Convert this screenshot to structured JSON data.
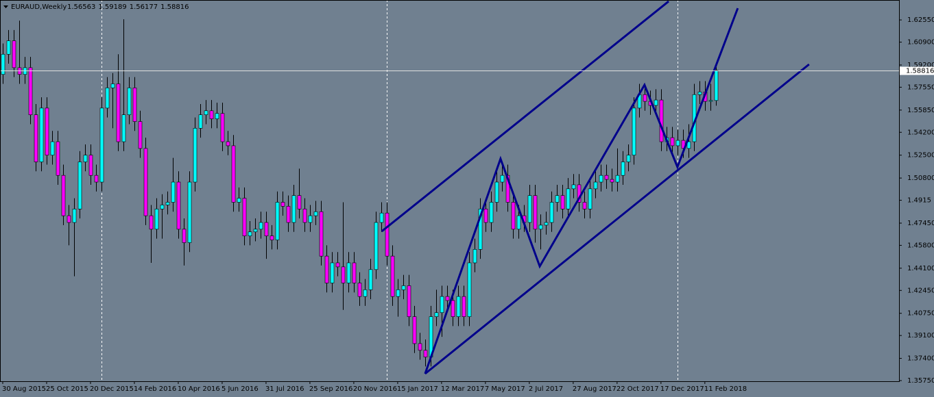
{
  "chart_data": {
    "type": "candlestick",
    "symbol": "EURAUD,Weekly",
    "bull_color": "#00ffff",
    "bear_color": "#ff00ff",
    "wick_color": "#000000",
    "background": "#708090",
    "trendline_color": "#00008b",
    "price_line_color": "#e0e0e0",
    "xlim": [
      -0.5,
      163.4
    ],
    "ylim": [
      1.357,
      1.6403
    ],
    "yticks": [
      {
        "value": 1.6255,
        "label": "1.62550"
      },
      {
        "value": 1.609,
        "label": "1.60900"
      },
      {
        "value": 1.592,
        "label": "1.59200"
      },
      {
        "value": 1.5755,
        "label": "1.57550"
      },
      {
        "value": 1.5585,
        "label": "1.55850"
      },
      {
        "value": 1.542,
        "label": "1.54200"
      },
      {
        "value": 1.525,
        "label": "1.52500"
      },
      {
        "value": 1.508,
        "label": "1.50800"
      },
      1.4915,
      {
        "value": 1.4745,
        "label": "1.47450"
      },
      {
        "value": 1.458,
        "label": "1.45800"
      },
      {
        "value": 1.441,
        "label": "1.44100"
      },
      {
        "value": 1.4245,
        "label": "1.42450"
      },
      {
        "value": 1.4075,
        "label": "1.40750"
      },
      {
        "value": 1.391,
        "label": "1.39100"
      },
      {
        "value": 1.374,
        "label": "1.37400"
      },
      {
        "value": 1.3575,
        "label": "1.35750"
      }
    ],
    "xticks": [
      {
        "value": 0,
        "label": "30 Aug 2015"
      },
      {
        "value": 8,
        "label": "25 Oct 2015"
      },
      {
        "value": 16,
        "label": "20 Dec 2015"
      },
      {
        "value": 24,
        "label": "14 Feb 2016"
      },
      {
        "value": 32,
        "label": "10 Apr 2016"
      },
      {
        "value": 40,
        "label": "5 Jun 2016"
      },
      {
        "value": 48,
        "label": "31 Jul 2016"
      },
      {
        "value": 56,
        "label": "25 Sep 2016"
      },
      {
        "value": 64,
        "label": "20 Nov 2016"
      },
      {
        "value": 72,
        "label": "15 Jan 2017"
      },
      {
        "value": 80,
        "label": "12 Mar 2017"
      },
      {
        "value": 88,
        "label": "7 May 2017"
      },
      {
        "value": 96,
        "label": "2 Jul 2017"
      },
      {
        "value": 104,
        "label": "27 Aug 2017"
      },
      {
        "value": 112,
        "label": "22 Oct 2017"
      },
      {
        "value": 120,
        "label": "17 Dec 2017"
      },
      {
        "value": 128,
        "label": "11 Feb 2018"
      }
    ],
    "period_separators": [
      18,
      70,
      123
    ],
    "trendlines": [
      {
        "x": [
          69.1,
          121.4
        ],
        "y": [
          1.4684,
          1.6393
        ]
      },
      {
        "x": [
          77,
          147
        ],
        "y": [
          1.3626,
          1.5925
        ]
      },
      {
        "x": [
          77,
          90.75,
          97.9,
          117,
          123,
          134
        ],
        "y": [
          1.3626,
          1.5223,
          1.4424,
          1.5772,
          1.5162,
          1.6342
        ]
      }
    ],
    "ohlc": [
      [
        1.585,
        1.608,
        1.578,
        1.6
      ],
      [
        1.6,
        1.618,
        1.593,
        1.61
      ],
      [
        1.61,
        1.618,
        1.583,
        1.59
      ],
      [
        1.59,
        1.625,
        1.578,
        1.585
      ],
      [
        1.585,
        1.598,
        1.578,
        1.59
      ],
      [
        1.59,
        1.598,
        1.548,
        1.555
      ],
      [
        1.555,
        1.563,
        1.513,
        1.52
      ],
      [
        1.52,
        1.568,
        1.513,
        1.56
      ],
      [
        1.56,
        1.568,
        1.518,
        1.525
      ],
      [
        1.525,
        1.543,
        1.518,
        1.535
      ],
      [
        1.535,
        1.543,
        1.503,
        1.51
      ],
      [
        1.51,
        1.518,
        1.473,
        1.48
      ],
      [
        1.48,
        1.488,
        1.458,
        1.475
      ],
      [
        1.475,
        1.493,
        1.435,
        1.485
      ],
      [
        1.485,
        1.528,
        1.478,
        1.52
      ],
      [
        1.52,
        1.533,
        1.513,
        1.525
      ],
      [
        1.525,
        1.533,
        1.503,
        1.51
      ],
      [
        1.51,
        1.518,
        1.498,
        1.505
      ],
      [
        1.505,
        1.568,
        1.498,
        1.56
      ],
      [
        1.56,
        1.583,
        1.553,
        1.575
      ],
      [
        1.575,
        1.586,
        1.545,
        1.578
      ],
      [
        1.578,
        1.6,
        1.528,
        1.535
      ],
      [
        1.535,
        1.626,
        1.528,
        1.555
      ],
      [
        1.555,
        1.583,
        1.548,
        1.575
      ],
      [
        1.575,
        1.583,
        1.543,
        1.55
      ],
      [
        1.55,
        1.558,
        1.523,
        1.53
      ],
      [
        1.53,
        1.538,
        1.473,
        1.48
      ],
      [
        1.48,
        1.488,
        1.445,
        1.47
      ],
      [
        1.47,
        1.493,
        1.463,
        1.485
      ],
      [
        1.485,
        1.496,
        1.463,
        1.488
      ],
      [
        1.488,
        1.498,
        1.481,
        1.49
      ],
      [
        1.49,
        1.523,
        1.483,
        1.505
      ],
      [
        1.505,
        1.513,
        1.463,
        1.47
      ],
      [
        1.47,
        1.478,
        1.443,
        1.46
      ],
      [
        1.46,
        1.513,
        1.453,
        1.505
      ],
      [
        1.505,
        1.553,
        1.498,
        1.545
      ],
      [
        1.545,
        1.563,
        1.538,
        1.555
      ],
      [
        1.555,
        1.566,
        1.548,
        1.558
      ],
      [
        1.558,
        1.566,
        1.545,
        1.552
      ],
      [
        1.552,
        1.564,
        1.545,
        1.556
      ],
      [
        1.556,
        1.564,
        1.528,
        1.535
      ],
      [
        1.535,
        1.543,
        1.525,
        1.532
      ],
      [
        1.532,
        1.54,
        1.483,
        1.49
      ],
      [
        1.49,
        1.501,
        1.483,
        1.493
      ],
      [
        1.493,
        1.501,
        1.458,
        1.465
      ],
      [
        1.465,
        1.476,
        1.458,
        1.468
      ],
      [
        1.468,
        1.478,
        1.461,
        1.47
      ],
      [
        1.47,
        1.483,
        1.463,
        1.475
      ],
      [
        1.475,
        1.483,
        1.448,
        1.465
      ],
      [
        1.465,
        1.473,
        1.455,
        1.462
      ],
      [
        1.462,
        1.498,
        1.455,
        1.49
      ],
      [
        1.49,
        1.498,
        1.48,
        1.487
      ],
      [
        1.487,
        1.495,
        1.468,
        1.475
      ],
      [
        1.475,
        1.503,
        1.468,
        1.495
      ],
      [
        1.495,
        1.515,
        1.478,
        1.485
      ],
      [
        1.485,
        1.493,
        1.468,
        1.475
      ],
      [
        1.475,
        1.488,
        1.468,
        1.48
      ],
      [
        1.48,
        1.491,
        1.473,
        1.483
      ],
      [
        1.483,
        1.491,
        1.443,
        1.45
      ],
      [
        1.45,
        1.458,
        1.423,
        1.43
      ],
      [
        1.43,
        1.453,
        1.423,
        1.445
      ],
      [
        1.445,
        1.453,
        1.435,
        1.442
      ],
      [
        1.442,
        1.49,
        1.41,
        1.43
      ],
      [
        1.43,
        1.453,
        1.423,
        1.445
      ],
      [
        1.445,
        1.453,
        1.423,
        1.43
      ],
      [
        1.43,
        1.438,
        1.413,
        1.42
      ],
      [
        1.42,
        1.433,
        1.413,
        1.425
      ],
      [
        1.425,
        1.448,
        1.418,
        1.44
      ],
      [
        1.44,
        1.483,
        1.433,
        1.475
      ],
      [
        1.475,
        1.49,
        1.468,
        1.482
      ],
      [
        1.482,
        1.49,
        1.443,
        1.45
      ],
      [
        1.45,
        1.458,
        1.413,
        1.42
      ],
      [
        1.42,
        1.433,
        1.405,
        1.425
      ],
      [
        1.425,
        1.436,
        1.418,
        1.428
      ],
      [
        1.428,
        1.436,
        1.398,
        1.405
      ],
      [
        1.405,
        1.413,
        1.378,
        1.385
      ],
      [
        1.385,
        1.393,
        1.373,
        1.38
      ],
      [
        1.38,
        1.388,
        1.368,
        1.375
      ],
      [
        1.375,
        1.413,
        1.368,
        1.405
      ],
      [
        1.405,
        1.425,
        1.398,
        1.408
      ],
      [
        1.408,
        1.428,
        1.39,
        1.42
      ],
      [
        1.42,
        1.428,
        1.41,
        1.417
      ],
      [
        1.417,
        1.425,
        1.398,
        1.405
      ],
      [
        1.405,
        1.428,
        1.398,
        1.42
      ],
      [
        1.42,
        1.428,
        1.398,
        1.405
      ],
      [
        1.405,
        1.453,
        1.398,
        1.445
      ],
      [
        1.445,
        1.463,
        1.438,
        1.455
      ],
      [
        1.455,
        1.493,
        1.448,
        1.485
      ],
      [
        1.485,
        1.493,
        1.468,
        1.475
      ],
      [
        1.475,
        1.498,
        1.468,
        1.49
      ],
      [
        1.49,
        1.513,
        1.483,
        1.505
      ],
      [
        1.505,
        1.52,
        1.498,
        1.51
      ],
      [
        1.51,
        1.518,
        1.483,
        1.49
      ],
      [
        1.49,
        1.498,
        1.463,
        1.47
      ],
      [
        1.47,
        1.488,
        1.463,
        1.48
      ],
      [
        1.48,
        1.488,
        1.468,
        1.475
      ],
      [
        1.475,
        1.503,
        1.468,
        1.495
      ],
      [
        1.495,
        1.503,
        1.46,
        1.47
      ],
      [
        1.47,
        1.481,
        1.455,
        1.473
      ],
      [
        1.473,
        1.483,
        1.466,
        1.475
      ],
      [
        1.475,
        1.498,
        1.468,
        1.49
      ],
      [
        1.49,
        1.503,
        1.483,
        1.495
      ],
      [
        1.495,
        1.503,
        1.478,
        1.485
      ],
      [
        1.485,
        1.508,
        1.478,
        1.5
      ],
      [
        1.5,
        1.511,
        1.493,
        1.503
      ],
      [
        1.503,
        1.511,
        1.483,
        1.49
      ],
      [
        1.49,
        1.498,
        1.478,
        1.485
      ],
      [
        1.485,
        1.508,
        1.478,
        1.5
      ],
      [
        1.5,
        1.513,
        1.493,
        1.505
      ],
      [
        1.505,
        1.518,
        1.498,
        1.51
      ],
      [
        1.51,
        1.518,
        1.5,
        1.507
      ],
      [
        1.507,
        1.515,
        1.498,
        1.505
      ],
      [
        1.505,
        1.53,
        1.498,
        1.51
      ],
      [
        1.51,
        1.528,
        1.503,
        1.52
      ],
      [
        1.52,
        1.533,
        1.513,
        1.525
      ],
      [
        1.525,
        1.568,
        1.518,
        1.56
      ],
      [
        1.56,
        1.578,
        1.553,
        1.57
      ],
      [
        1.57,
        1.578,
        1.558,
        1.565
      ],
      [
        1.565,
        1.573,
        1.555,
        1.562
      ],
      [
        1.562,
        1.574,
        1.555,
        1.566
      ],
      [
        1.566,
        1.574,
        1.528,
        1.535
      ],
      [
        1.535,
        1.546,
        1.528,
        1.538
      ],
      [
        1.538,
        1.546,
        1.525,
        1.532
      ],
      [
        1.532,
        1.544,
        1.525,
        1.536
      ],
      [
        1.536,
        1.544,
        1.523,
        1.53
      ],
      [
        1.53,
        1.548,
        1.523,
        1.535
      ],
      [
        1.535,
        1.578,
        1.528,
        1.57
      ],
      [
        1.57,
        1.58,
        1.563,
        1.572
      ],
      [
        1.572,
        1.58,
        1.558,
        1.565
      ],
      [
        1.565,
        1.578,
        1.558,
        1.56563
      ],
      [
        1.56563,
        1.59189,
        1.56177,
        1.58816
      ]
    ]
  }
}
